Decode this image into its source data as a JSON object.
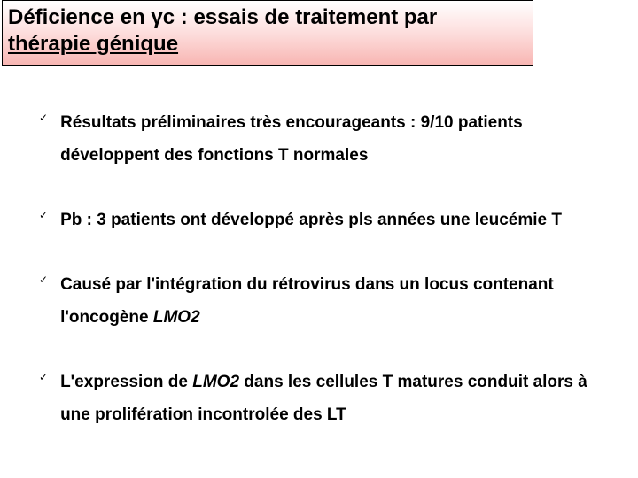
{
  "title": {
    "line1_pre": "Déficience en ",
    "line1_gamma": "γ",
    "line1_post": "c : essais de traitement par",
    "line2": "thérapie génique"
  },
  "bullets": [
    {
      "text": "Résultats préliminaires très encourageants : 9/10 patients développent des fonctions T normales"
    },
    {
      "text": "Pb : 3 patients ont développé après pls années une leucémie T"
    },
    {
      "pre": "Causé par  l'intégration du rétrovirus dans un locus contenant l'oncogène ",
      "italic": "LMO2",
      "post": ""
    },
    {
      "pre": "L'expression de ",
      "italic": "LMO2",
      "post": " dans les cellules T matures conduit alors à une prolifération incontrolée des LT"
    }
  ],
  "styling": {
    "title_fontsize": 24,
    "title_font_weight": "bold",
    "title_border_color": "#000000",
    "title_gradient_top": "#ffffff",
    "title_gradient_mid": "#fddedd",
    "title_gradient_bottom": "#f8b6b3",
    "body_fontsize": 19,
    "body_font_weight": "bold",
    "body_line_height": 1.95,
    "check_color": "#000000",
    "check_fontsize": 12,
    "background_color": "#ffffff",
    "text_color": "#000000",
    "bullet_spacing": 36
  }
}
